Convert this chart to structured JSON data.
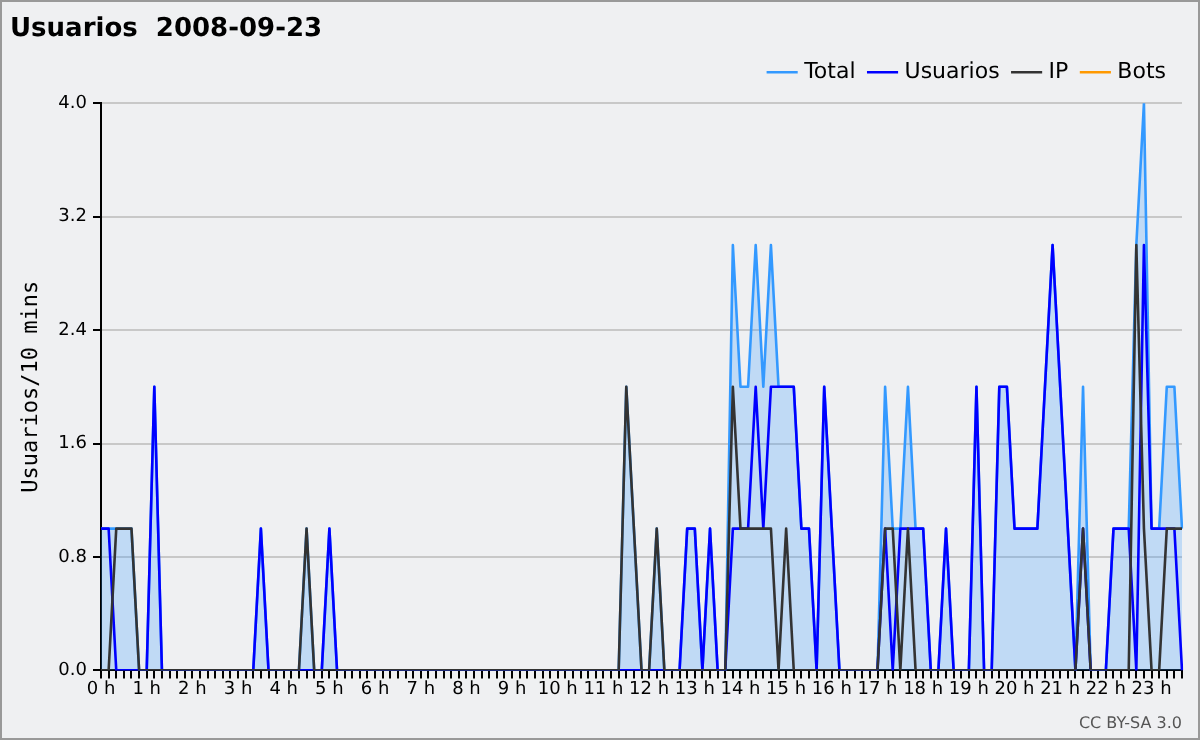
{
  "chart_data": {
    "type": "line",
    "title": "Usuarios  2008-09-23",
    "ylabel": "Usuarios/10 mins",
    "annotations": [
      "CC BY-SA 3.0"
    ],
    "categories": [
      "0 h",
      null,
      null,
      null,
      null,
      null,
      "1 h",
      null,
      null,
      null,
      null,
      null,
      "2 h",
      null,
      null,
      null,
      null,
      null,
      "3 h",
      null,
      null,
      null,
      null,
      null,
      "4 h",
      null,
      null,
      null,
      null,
      null,
      "5 h",
      null,
      null,
      null,
      null,
      null,
      "6 h",
      null,
      null,
      null,
      null,
      null,
      "7 h",
      null,
      null,
      null,
      null,
      null,
      "8 h",
      null,
      null,
      null,
      null,
      null,
      "9 h",
      null,
      null,
      null,
      null,
      null,
      "10 h",
      null,
      null,
      null,
      null,
      null,
      "11 h",
      null,
      null,
      null,
      null,
      null,
      "12 h",
      null,
      null,
      null,
      null,
      null,
      "13 h",
      null,
      null,
      null,
      null,
      null,
      "14 h",
      null,
      null,
      null,
      null,
      null,
      "15 h",
      null,
      null,
      null,
      null,
      null,
      "16 h",
      null,
      null,
      null,
      null,
      null,
      "17 h",
      null,
      null,
      null,
      null,
      null,
      "18 h",
      null,
      null,
      null,
      null,
      null,
      "19 h",
      null,
      null,
      null,
      null,
      null,
      "20 h",
      null,
      null,
      null,
      null,
      null,
      "21 h",
      null,
      null,
      null,
      null,
      null,
      "22 h",
      null,
      null,
      null,
      null,
      null,
      "23 h",
      null,
      null,
      null,
      null
    ],
    "series": [
      {
        "name": "Total",
        "type": "area",
        "color": "#3399ff",
        "values": [
          1,
          1,
          1,
          1,
          1,
          0,
          0,
          2,
          0,
          0,
          0,
          0,
          0,
          0,
          0,
          0,
          0,
          0,
          0,
          0,
          0,
          1,
          0,
          0,
          0,
          0,
          0,
          1,
          0,
          0,
          1,
          0,
          0,
          0,
          0,
          0,
          0,
          0,
          0,
          0,
          0,
          0,
          0,
          0,
          0,
          0,
          0,
          0,
          0,
          0,
          0,
          0,
          0,
          0,
          0,
          0,
          0,
          0,
          0,
          0,
          0,
          0,
          0,
          0,
          0,
          0,
          0,
          0,
          0,
          2,
          1,
          0,
          0,
          1,
          0,
          0,
          0,
          1,
          1,
          0,
          1,
          0,
          0,
          3,
          2,
          2,
          3,
          2,
          3,
          2,
          2,
          2,
          1,
          1,
          0,
          2,
          1,
          0,
          0,
          0,
          0,
          0,
          0,
          2,
          1,
          1,
          2,
          1,
          1,
          0,
          0,
          1,
          0,
          0,
          0,
          2,
          0,
          0,
          2,
          2,
          1,
          1,
          1,
          1,
          2,
          3,
          2,
          1,
          0,
          2,
          0,
          0,
          0,
          1,
          1,
          1,
          3,
          4,
          1,
          1,
          2,
          2,
          1
        ]
      },
      {
        "name": "Usuarios",
        "type": "line",
        "color": "#0000ff",
        "values": [
          1,
          1,
          0,
          0,
          0,
          0,
          0,
          2,
          0,
          0,
          0,
          0,
          0,
          0,
          0,
          0,
          0,
          0,
          0,
          0,
          0,
          1,
          0,
          0,
          0,
          0,
          0,
          0,
          0,
          0,
          1,
          0,
          0,
          0,
          0,
          0,
          0,
          0,
          0,
          0,
          0,
          0,
          0,
          0,
          0,
          0,
          0,
          0,
          0,
          0,
          0,
          0,
          0,
          0,
          0,
          0,
          0,
          0,
          0,
          0,
          0,
          0,
          0,
          0,
          0,
          0,
          0,
          0,
          0,
          0,
          0,
          0,
          0,
          0,
          0,
          0,
          0,
          1,
          1,
          0,
          1,
          0,
          0,
          1,
          1,
          1,
          2,
          1,
          2,
          2,
          2,
          2,
          1,
          1,
          0,
          2,
          1,
          0,
          0,
          0,
          0,
          0,
          0,
          1,
          0,
          1,
          1,
          1,
          1,
          0,
          0,
          1,
          0,
          0,
          0,
          2,
          0,
          0,
          2,
          2,
          1,
          1,
          1,
          1,
          2,
          3,
          2,
          1,
          0,
          1,
          0,
          0,
          0,
          1,
          1,
          1,
          0,
          3,
          1,
          1,
          1,
          1,
          0
        ]
      },
      {
        "name": "IP",
        "type": "line",
        "color": "#333333",
        "values": [
          0,
          0,
          1,
          1,
          1,
          0,
          0,
          0,
          0,
          0,
          0,
          0,
          0,
          0,
          0,
          0,
          0,
          0,
          0,
          0,
          0,
          0,
          0,
          0,
          0,
          0,
          0,
          1,
          0,
          0,
          0,
          0,
          0,
          0,
          0,
          0,
          0,
          0,
          0,
          0,
          0,
          0,
          0,
          0,
          0,
          0,
          0,
          0,
          0,
          0,
          0,
          0,
          0,
          0,
          0,
          0,
          0,
          0,
          0,
          0,
          0,
          0,
          0,
          0,
          0,
          0,
          0,
          0,
          0,
          2,
          1,
          0,
          0,
          1,
          0,
          0,
          0,
          0,
          0,
          0,
          0,
          0,
          0,
          2,
          1,
          1,
          1,
          1,
          1,
          0,
          1,
          0,
          0,
          0,
          0,
          0,
          0,
          0,
          0,
          0,
          0,
          0,
          0,
          1,
          1,
          0,
          1,
          0,
          0,
          0,
          0,
          0,
          0,
          0,
          0,
          0,
          0,
          0,
          0,
          0,
          0,
          0,
          0,
          0,
          0,
          0,
          0,
          0,
          0,
          1,
          0,
          0,
          0,
          0,
          0,
          0,
          3,
          1,
          0,
          0,
          1,
          1,
          1
        ]
      },
      {
        "name": "Bots",
        "type": "line",
        "color": "#ff9900",
        "values": [
          null,
          null,
          null,
          null,
          null,
          null,
          null,
          null,
          null,
          null,
          null,
          null,
          null,
          null,
          null,
          null,
          null,
          null,
          null,
          null,
          null,
          null,
          null,
          null,
          null,
          null,
          null,
          null,
          null,
          null,
          null,
          null,
          null,
          null,
          null,
          null,
          null,
          null,
          null,
          null,
          null,
          null,
          null,
          null,
          null,
          null,
          null,
          null,
          null,
          null,
          null,
          null,
          null,
          null,
          null,
          null,
          null,
          null,
          null,
          null,
          null,
          null,
          null,
          null,
          null,
          null,
          null,
          null,
          null,
          null,
          null,
          null,
          null,
          null,
          null,
          null,
          null,
          null,
          null,
          null,
          null,
          null,
          null,
          null,
          null,
          null,
          null,
          null,
          null,
          null,
          null,
          null,
          null,
          null,
          null,
          null,
          null,
          null,
          null,
          null,
          null,
          null,
          null,
          null,
          null,
          null,
          null,
          null,
          null,
          null,
          null,
          null,
          null,
          null,
          null,
          null,
          null,
          null,
          null,
          null,
          null,
          null,
          null,
          null,
          null,
          null,
          null,
          null,
          null,
          null,
          null,
          null,
          null,
          null,
          null,
          null,
          null,
          null,
          null,
          null,
          null,
          null,
          null
        ]
      }
    ],
    "ylim": [
      0,
      4
    ],
    "yticks": [
      {
        "value": 0,
        "label": "0.0"
      },
      0.8,
      1.6,
      2.4,
      3.2,
      {
        "value": 4,
        "label": "4.0"
      }
    ],
    "grid": "y",
    "legend": "top right",
    "marker": "none",
    "line_style": "solid"
  }
}
